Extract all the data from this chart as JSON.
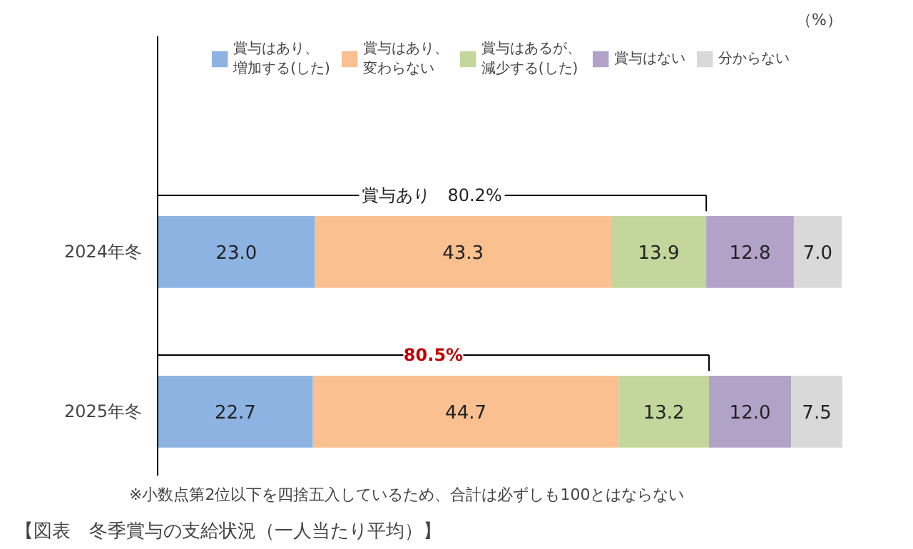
{
  "chart_data": {
    "type": "bar",
    "orientation": "horizontal",
    "stacked": true,
    "title": "【図表　冬季賞与の支給状況（一人当たり平均）】",
    "categories": [
      "2024年冬",
      "2025年冬"
    ],
    "series": [
      {
        "name": "賞与はあり、増加する(した)",
        "color": "#8db3e2",
        "values": [
          23.0,
          22.7
        ],
        "value_labels": [
          "23.0",
          "22.7"
        ]
      },
      {
        "name": "賞与はあり、変わらない",
        "color": "#fac090",
        "values": [
          43.3,
          44.7
        ],
        "value_labels": [
          "43.3",
          "44.7"
        ]
      },
      {
        "name": "賞与はあるが、減少する(した)",
        "color": "#c3d69b",
        "values": [
          13.9,
          13.2
        ],
        "value_labels": [
          "13.9",
          "13.2"
        ]
      },
      {
        "name": "賞与はない",
        "color": "#b3a2c7",
        "values": [
          12.8,
          12.0
        ],
        "value_labels": [
          "12.8",
          "12.0"
        ]
      },
      {
        "name": "分からない",
        "color": "#d9d9d9",
        "values": [
          7.0,
          7.5
        ],
        "value_labels": [
          "7.0",
          "7.5"
        ]
      }
    ],
    "legend": "top",
    "grid": false,
    "tick_labels": "y",
    "annotations": [
      "（%）",
      "賞与あり　80.2%",
      "80.5%",
      "※小数点第2位以下を四捨五入しているため、合計は必ずしも100とはならない"
    ]
  }
}
